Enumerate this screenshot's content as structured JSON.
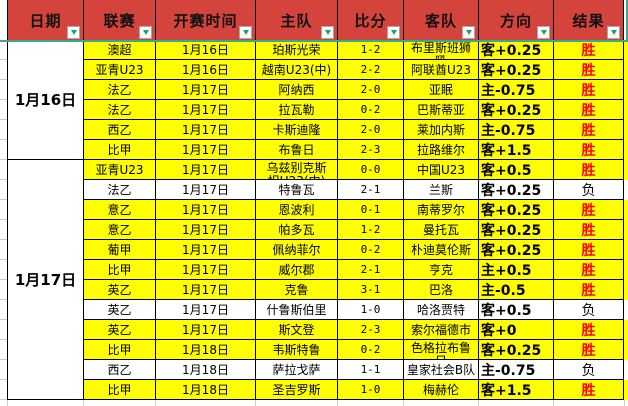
{
  "colors": {
    "header_bg": "#d5443c",
    "accent_line": "#38ab8c",
    "filter_arrow": "#21a366",
    "row_win_bg": "#ffff00",
    "row_loss_bg": "#ffffff",
    "result_win_color": "#ff0000",
    "result_loss_color": "#000000",
    "grid_border": "#000000"
  },
  "table": {
    "filter_icon": "chevron-down",
    "columns": [
      {
        "key": "date",
        "label": "日期"
      },
      {
        "key": "league",
        "label": "联赛"
      },
      {
        "key": "time",
        "label": "开赛时间"
      },
      {
        "key": "home",
        "label": "主队"
      },
      {
        "key": "score",
        "label": "比分"
      },
      {
        "key": "away",
        "label": "客队"
      },
      {
        "key": "direction",
        "label": "方向"
      },
      {
        "key": "result",
        "label": "结果"
      }
    ],
    "groups": [
      {
        "date": "1月16日",
        "rows": [
          {
            "league": "澳超",
            "time": "1月16日",
            "home": "珀斯光荣",
            "score": "1-2",
            "away": "布里斯班狮吼",
            "direction": "客+0.25",
            "result": "胜",
            "wrap": [
              "away"
            ]
          },
          {
            "league": "亚青U23",
            "time": "1月16日",
            "home": "越南U23(中)",
            "score": "2-2",
            "away": "阿联酋U23",
            "direction": "客+0.25",
            "result": "胜"
          },
          {
            "league": "法乙",
            "time": "1月17日",
            "home": "阿纳西",
            "score": "2-0",
            "away": "亚眠",
            "direction": "主-0.75",
            "result": "胜"
          },
          {
            "league": "法乙",
            "time": "1月17日",
            "home": "拉瓦勒",
            "score": "0-2",
            "away": "巴斯蒂亚",
            "direction": "客+0.25",
            "result": "胜"
          },
          {
            "league": "西乙",
            "time": "1月17日",
            "home": "卡斯迪隆",
            "score": "2-0",
            "away": "莱加内斯",
            "direction": "主-0.75",
            "result": "胜"
          },
          {
            "league": "比甲",
            "time": "1月17日",
            "home": "布鲁日",
            "score": "2-3",
            "away": "拉路维尔",
            "direction": "客+1.5",
            "result": "胜"
          }
        ]
      },
      {
        "date": "1月17日",
        "rows": [
          {
            "league": "亚青U23",
            "time": "1月17日",
            "home": "乌兹别克斯坦U23(中)",
            "score": "0-0",
            "away": "中国U23",
            "direction": "客+0.5",
            "result": "胜",
            "wrap": [
              "home"
            ]
          },
          {
            "league": "法乙",
            "time": "1月17日",
            "home": "特鲁瓦",
            "score": "2-1",
            "away": "兰斯",
            "direction": "客+0.25",
            "result": "负"
          },
          {
            "league": "意乙",
            "time": "1月17日",
            "home": "恩波利",
            "score": "0-1",
            "away": "南蒂罗尔",
            "direction": "客+0.25",
            "result": "胜"
          },
          {
            "league": "意乙",
            "time": "1月17日",
            "home": "帕多瓦",
            "score": "1-2",
            "away": "曼托瓦",
            "direction": "客+0.25",
            "result": "胜"
          },
          {
            "league": "葡甲",
            "time": "1月17日",
            "home": "佩纳菲尔",
            "score": "0-2",
            "away": "朴迪莫伦斯",
            "direction": "客+0.25",
            "result": "胜"
          },
          {
            "league": "比甲",
            "time": "1月17日",
            "home": "威尔郡",
            "score": "2-1",
            "away": "亨克",
            "direction": "主+0.5",
            "result": "胜"
          },
          {
            "league": "英乙",
            "time": "1月17日",
            "home": "克鲁",
            "score": "3-1",
            "away": "巴洛",
            "direction": "主-0.5",
            "result": "胜"
          },
          {
            "league": "英乙",
            "time": "1月17日",
            "home": "什鲁斯伯里",
            "score": "1-0",
            "away": "哈洛贾特",
            "direction": "客+0.5",
            "result": "负"
          },
          {
            "league": "英乙",
            "time": "1月17日",
            "home": "斯文登",
            "score": "2-3",
            "away": "索尔福德市",
            "direction": "客+0",
            "result": "胜"
          },
          {
            "league": "比甲",
            "time": "1月18日",
            "home": "韦斯特鲁",
            "score": "0-2",
            "away": "色格拉布鲁日",
            "direction": "客+0.25",
            "result": "胜",
            "wrap": [
              "away"
            ]
          },
          {
            "league": "西乙",
            "time": "1月18日",
            "home": "萨拉戈萨",
            "score": "1-1",
            "away": "皇家社会B队",
            "direction": "主-0.75",
            "result": "负"
          },
          {
            "league": "比甲",
            "time": "1月18日",
            "home": "圣吉罗斯",
            "score": "1-0",
            "away": "梅赫伦",
            "direction": "客+1.5",
            "result": "胜"
          }
        ]
      }
    ]
  }
}
